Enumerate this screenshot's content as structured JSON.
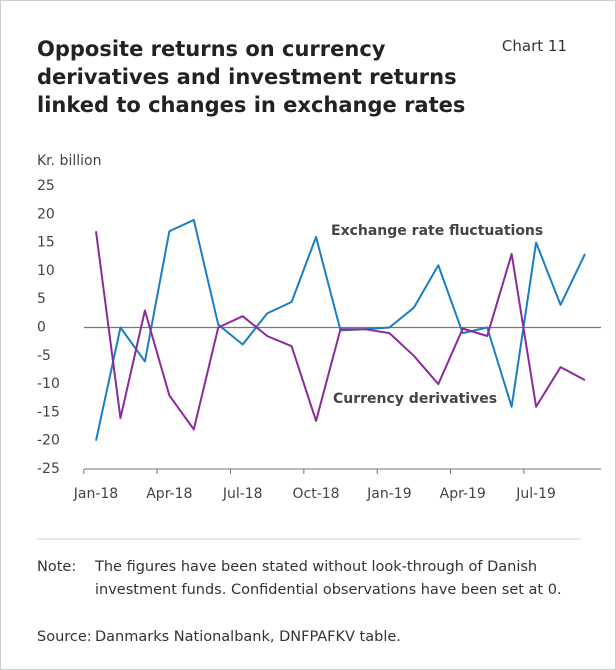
{
  "chart_data": {
    "type": "line",
    "title": "Opposite returns on currency derivatives and investment returns linked to changes in exchange rates",
    "chart_label": "Chart 11",
    "y_axis_label": "Kr. billion",
    "categories": [
      "Jan-18",
      null,
      null,
      "Apr-18",
      null,
      null,
      "Jul-18",
      null,
      null,
      "Oct-18",
      null,
      null,
      "Jan-19",
      null,
      null,
      "Apr-19",
      null,
      null,
      "Jul-19",
      null,
      null
    ],
    "series": [
      {
        "name": "Exchange rate fluctuations",
        "color": "#1a7ec7",
        "values": [
          -20,
          0,
          -6,
          17,
          19,
          0.5,
          -3,
          2.5,
          4.5,
          16,
          -0.5,
          -0.3,
          0,
          3.5,
          11,
          -1,
          0,
          -14,
          15,
          4,
          13
        ]
      },
      {
        "name": "Currency derivatives",
        "color": "#8a2a9b",
        "values": [
          17,
          -16,
          3,
          -12,
          -18,
          0,
          2,
          -1.5,
          -3.3,
          -16.5,
          -0.3,
          -0.3,
          -1,
          -5,
          -10,
          -0.2,
          -1.5,
          13,
          -14,
          -7,
          -9.3
        ]
      }
    ],
    "ylim": [
      -25,
      25
    ],
    "yticks": [
      -25,
      -20,
      -15,
      -10,
      -5,
      0,
      5,
      10,
      15,
      20,
      25
    ],
    "note_label": "Note:",
    "note": "The figures have been stated without look-through of Danish investment funds. Confidential observations have been set at 0.",
    "source_label": "Source:",
    "source": "Danmarks Nationalbank, DNFPAFKV table."
  }
}
